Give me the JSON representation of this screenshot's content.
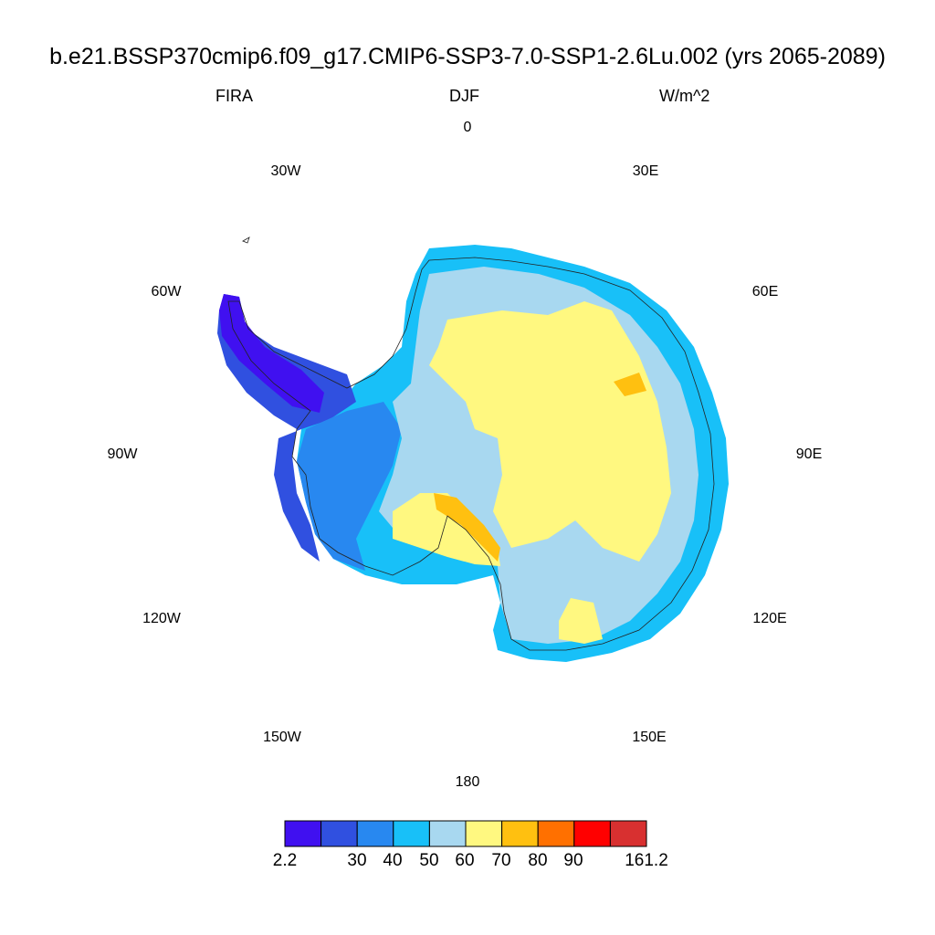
{
  "title": "b.e21.BSSP370cmip6.f09_g17.CMIP6-SSP3-7.0-SSP1-2.6Lu.002 (yrs 2065-2089)",
  "variable": "FIRA",
  "season": "DJF",
  "units": "W/m^2",
  "projection": "polar-stereographic-south",
  "longitude_labels": [
    {
      "id": "lon-0",
      "text": "0"
    },
    {
      "id": "lon-30e",
      "text": "30E"
    },
    {
      "id": "lon-60e",
      "text": "60E"
    },
    {
      "id": "lon-90e",
      "text": "90E"
    },
    {
      "id": "lon-120e",
      "text": "120E"
    },
    {
      "id": "lon-150e",
      "text": "150E"
    },
    {
      "id": "lon-180",
      "text": "180"
    },
    {
      "id": "lon-150w",
      "text": "150W"
    },
    {
      "id": "lon-120w",
      "text": "120W"
    },
    {
      "id": "lon-90w",
      "text": "90W"
    },
    {
      "id": "lon-60w",
      "text": "60W"
    },
    {
      "id": "lon-30w",
      "text": "30W"
    }
  ],
  "colorbar": {
    "colors": [
      "#4010f0",
      "#3050e0",
      "#2888f0",
      "#18c0f8",
      "#a8d8f0",
      "#fff880",
      "#ffc010",
      "#ff7000",
      "#ff0000",
      "#d83030"
    ],
    "labels": [
      "2.2",
      "30",
      "40",
      "50",
      "60",
      "70",
      "80",
      "90",
      "161.2"
    ]
  },
  "region_colors": {
    "plateau": "#fff880",
    "interior_low": "#a8d8f0",
    "coast": "#18c0f8",
    "coast_low": "#2888f0",
    "peninsula": "#3050e0",
    "peninsula_tip": "#4010f0",
    "warm_patch": "#ffc010"
  }
}
